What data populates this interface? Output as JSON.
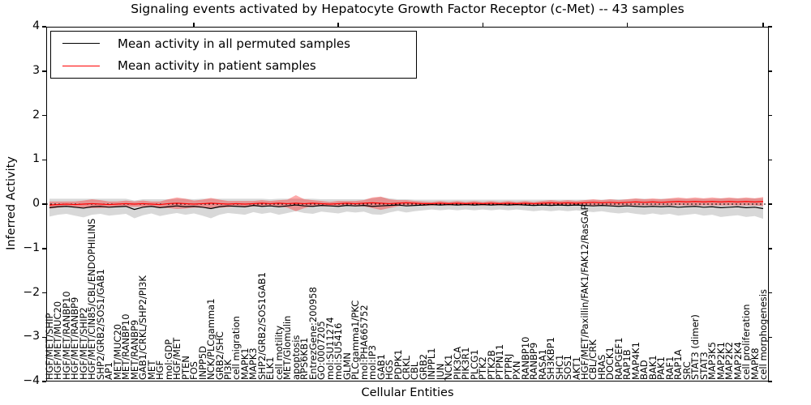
{
  "title": "Signaling events activated by Hepatocyte Growth Factor Receptor (c-Met) -- 43 samples",
  "legend": {
    "items": [
      {
        "label": "Mean activity in all permuted samples",
        "color": "#000000"
      },
      {
        "label": "Mean activity in patient samples",
        "color": "#ff0000"
      }
    ]
  },
  "axes": {
    "ylabel": "Inferred Activity",
    "xlabel": "Cellular Entities",
    "ytick_labels": [
      "4",
      "3",
      "2",
      "1",
      "0",
      "−1",
      "−2",
      "−3",
      "−4"
    ]
  },
  "colors": {
    "permuted_line": "#000000",
    "patient_line": "#ff0000",
    "permuted_band": "#999999",
    "patient_band": "#ff0000",
    "zero_line": "#000000"
  },
  "chart_data": {
    "type": "line",
    "title": "Signaling events activated by Hepatocyte Growth Factor Receptor (c-Met) -- 43 samples",
    "xlabel": "Cellular Entities",
    "ylabel": "Inferred Activity",
    "ylim": [
      -4,
      4
    ],
    "yticks": [
      4,
      3,
      2,
      1,
      0,
      -1,
      -2,
      -3,
      -4
    ],
    "grid": false,
    "legend_position": "upper left",
    "zero_line": {
      "y": 0,
      "style": "dashed",
      "color": "#000000"
    },
    "categories": [
      "HGF/MET/SHIP",
      "HGF/MET/MUC20",
      "HGF/MET/RANBP10",
      "HGF/MET/RANBP9",
      "HGF/MET/SHIP2",
      "HGF/MET/CIN85/CBL/ENDOPHILINS",
      "SHP2/GRB2/SOS1/GAB1",
      "AP1",
      "MET/MUC20",
      "MET/RANBP10",
      "MET/RANBP9",
      "GAB1/CRKL/SHP2/PI3K",
      "MET",
      "HGF",
      "mol:GDP",
      "HGF/MET",
      "PTEN",
      "FOS",
      "INPP5D",
      "NCK/PLCgamma1",
      "GRB2/SHC",
      "PI3K",
      "cell migration",
      "MAPK1",
      "MAPK3",
      "SHP2/GRB2/SOS1GAB1",
      "ELK1",
      "cell motility",
      "MET/Glomulin",
      "apoptosis",
      "RPS6KB1",
      "EntrezGene:200958",
      "GO:0007205",
      "mol:SU11274",
      "mol:SU5416",
      "GLMN",
      "PLCgamma1/PKC",
      "mol:PHA665752",
      "mol:IP3",
      "GAB1",
      "HGS",
      "PDPK1",
      "CRKL",
      "CBL",
      "GRB2",
      "INPPL1",
      "JUN",
      "NCK1",
      "PIK3CA",
      "PIK3R1",
      "PLCG1",
      "PTK2",
      "PTK2B",
      "PTPN11",
      "PTPRJ",
      "PXN",
      "RANBP10",
      "RANBP9",
      "RASA1",
      "SH3KBP1",
      "SHC1",
      "SOS1",
      "AKT1",
      "HGF/MET/Paxillin/FAK1/FAK12/RasGAP",
      "CBL/CRK",
      "HRAS",
      "DOCK1",
      "RAPGEF1",
      "RAP1B",
      "MAP4K1",
      "BAD",
      "BAK1",
      "PAK1",
      "RAF1",
      "RAP1A",
      "SRC",
      "STAT3 (dimer)",
      "STAT3",
      "MAP3K5",
      "MAP2K1",
      "MAP2K2",
      "MAP2K4",
      "cell proliferation",
      "MAPK8",
      "cell morphogenesis"
    ],
    "series": [
      {
        "name": "Mean activity in all permuted samples",
        "color": "#000000",
        "band_color": "#999999",
        "band_opacity": 0.38,
        "values": [
          -0.08,
          -0.06,
          -0.05,
          -0.07,
          -0.09,
          -0.06,
          -0.05,
          -0.07,
          -0.06,
          -0.05,
          -0.12,
          -0.07,
          -0.05,
          -0.08,
          -0.06,
          -0.04,
          -0.06,
          -0.05,
          -0.07,
          -0.1,
          -0.06,
          -0.04,
          -0.05,
          -0.06,
          -0.03,
          -0.05,
          -0.04,
          -0.06,
          -0.04,
          -0.02,
          -0.04,
          -0.05,
          -0.03,
          -0.04,
          -0.05,
          -0.03,
          -0.04,
          -0.03,
          -0.05,
          -0.04,
          -0.03,
          -0.02,
          -0.04,
          -0.03,
          -0.02,
          -0.01,
          -0.02,
          -0.01,
          -0.02,
          -0.01,
          -0.02,
          -0.01,
          -0.02,
          -0.01,
          -0.02,
          -0.01,
          -0.02,
          -0.03,
          -0.02,
          -0.03,
          -0.02,
          -0.03,
          -0.02,
          -0.03,
          -0.04,
          -0.03,
          -0.04,
          -0.05,
          -0.04,
          -0.05,
          -0.06,
          -0.05,
          -0.06,
          -0.05,
          -0.07,
          -0.06,
          -0.05,
          -0.07,
          -0.06,
          -0.08,
          -0.07,
          -0.06,
          -0.08,
          -0.07,
          -0.1
        ],
        "band_halfwidth": [
          0.2,
          0.18,
          0.17,
          0.19,
          0.21,
          0.18,
          0.17,
          0.19,
          0.18,
          0.17,
          0.2,
          0.18,
          0.16,
          0.19,
          0.17,
          0.16,
          0.18,
          0.16,
          0.19,
          0.22,
          0.18,
          0.16,
          0.17,
          0.18,
          0.15,
          0.17,
          0.15,
          0.18,
          0.16,
          0.14,
          0.16,
          0.17,
          0.14,
          0.15,
          0.16,
          0.14,
          0.15,
          0.14,
          0.18,
          0.2,
          0.16,
          0.13,
          0.15,
          0.13,
          0.12,
          0.11,
          0.12,
          0.11,
          0.12,
          0.11,
          0.12,
          0.11,
          0.12,
          0.11,
          0.12,
          0.11,
          0.12,
          0.13,
          0.12,
          0.13,
          0.12,
          0.13,
          0.12,
          0.13,
          0.14,
          0.13,
          0.15,
          0.16,
          0.15,
          0.17,
          0.18,
          0.16,
          0.18,
          0.17,
          0.19,
          0.18,
          0.17,
          0.19,
          0.18,
          0.21,
          0.2,
          0.19,
          0.21,
          0.2,
          0.23
        ]
      },
      {
        "name": "Mean activity in patient samples",
        "color": "#ff0000",
        "band_color": "#ff0000",
        "band_opacity": 0.33,
        "values": [
          -0.02,
          -0.01,
          0.0,
          -0.01,
          0.0,
          0.01,
          0.0,
          -0.01,
          0.0,
          0.01,
          0.0,
          0.01,
          0.0,
          -0.01,
          0.01,
          0.02,
          0.01,
          0.0,
          0.01,
          0.02,
          0.01,
          0.0,
          0.01,
          0.0,
          0.01,
          0.02,
          0.01,
          0.02,
          0.01,
          0.02,
          0.01,
          0.02,
          0.01,
          0.0,
          0.01,
          0.02,
          0.01,
          0.02,
          0.03,
          0.02,
          0.01,
          0.02,
          0.03,
          0.02,
          0.01,
          0.01,
          0.02,
          0.01,
          0.02,
          0.01,
          0.02,
          0.01,
          0.02,
          0.01,
          0.02,
          0.01,
          0.02,
          0.01,
          0.02,
          0.03,
          0.02,
          0.03,
          0.02,
          0.03,
          0.04,
          0.03,
          0.04,
          0.03,
          0.04,
          0.05,
          0.04,
          0.05,
          0.04,
          0.05,
          0.06,
          0.05,
          0.06,
          0.05,
          0.06,
          0.05,
          0.06,
          0.05,
          0.06,
          0.05,
          0.06
        ],
        "band_halfwidth": [
          0.08,
          0.07,
          0.06,
          0.07,
          0.08,
          0.1,
          0.09,
          0.07,
          0.06,
          0.07,
          0.06,
          0.07,
          0.06,
          0.07,
          0.1,
          0.13,
          0.11,
          0.08,
          0.09,
          0.12,
          0.09,
          0.07,
          0.06,
          0.07,
          0.06,
          0.07,
          0.06,
          0.07,
          0.09,
          0.18,
          0.1,
          0.07,
          0.06,
          0.05,
          0.06,
          0.05,
          0.06,
          0.07,
          0.12,
          0.15,
          0.1,
          0.07,
          0.06,
          0.05,
          0.05,
          0.04,
          0.05,
          0.04,
          0.05,
          0.04,
          0.05,
          0.04,
          0.05,
          0.04,
          0.05,
          0.04,
          0.05,
          0.04,
          0.05,
          0.06,
          0.05,
          0.06,
          0.05,
          0.06,
          0.07,
          0.06,
          0.07,
          0.06,
          0.07,
          0.08,
          0.07,
          0.08,
          0.07,
          0.08,
          0.09,
          0.08,
          0.09,
          0.08,
          0.09,
          0.08,
          0.09,
          0.08,
          0.09,
          0.08,
          0.1
        ]
      }
    ]
  }
}
